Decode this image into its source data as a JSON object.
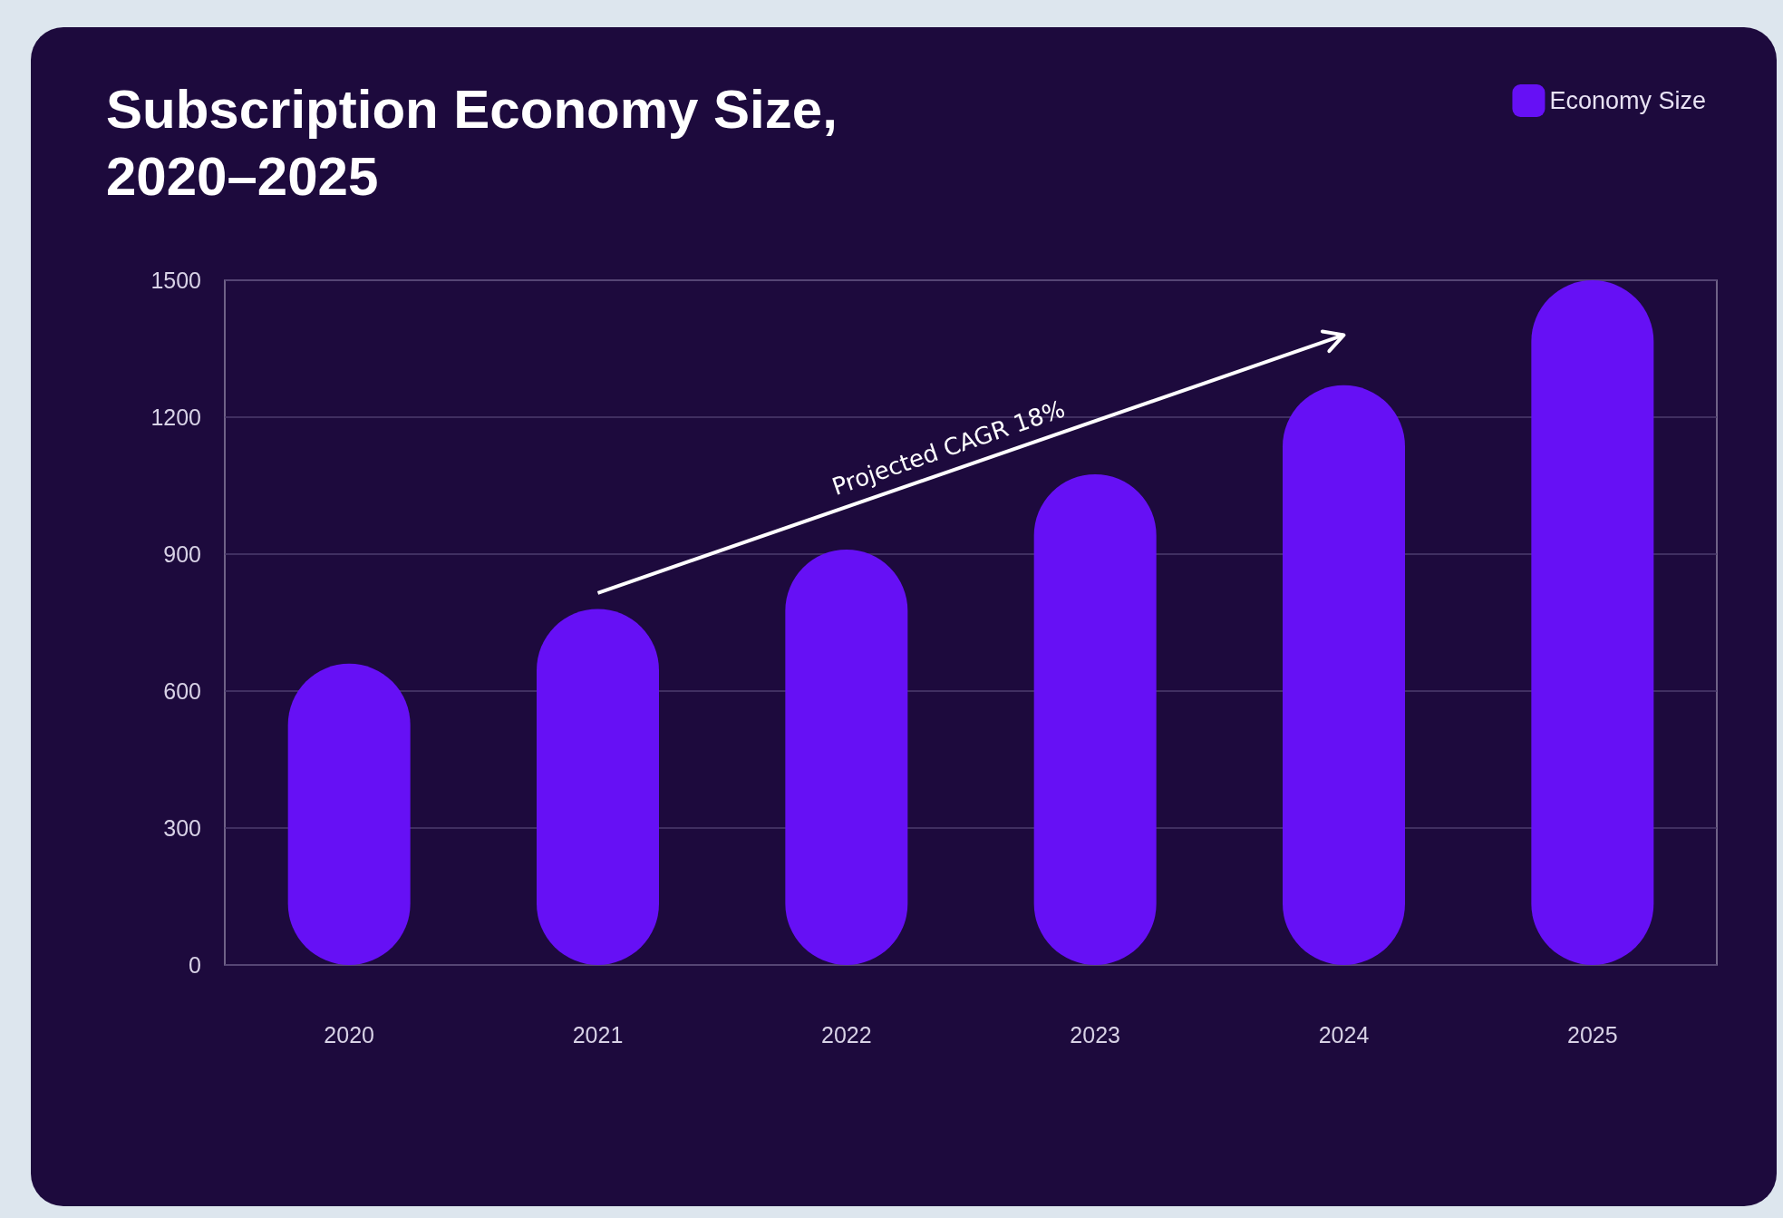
{
  "chart_data": {
    "type": "bar",
    "title": "Subscription Economy Size,\n2020–2025",
    "categories": [
      "2020",
      "2021",
      "2022",
      "2023",
      "2024",
      "2025"
    ],
    "series": [
      {
        "name": "Economy Size",
        "color": "#6610f5",
        "values": [
          660,
          780,
          910,
          1075,
          1270,
          1500
        ]
      }
    ],
    "ylim": [
      0,
      1500
    ],
    "yticks": [
      0,
      300,
      600,
      900,
      1200,
      1500
    ],
    "grid": "y",
    "legend": "top right",
    "annotations": [
      "Projected CAGR 18%"
    ]
  }
}
